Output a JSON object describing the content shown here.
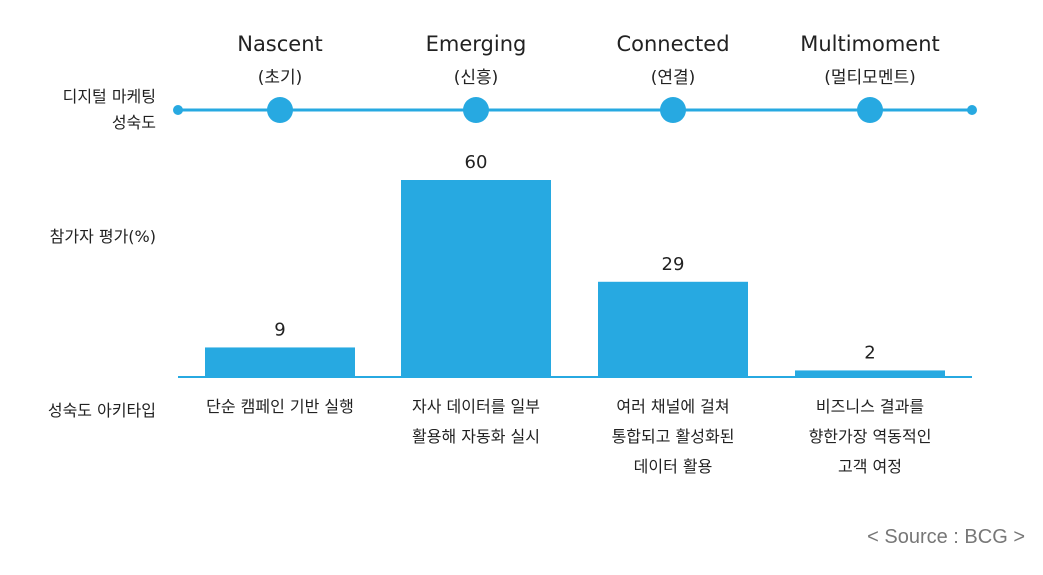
{
  "row_labels": {
    "maturity": "디지털 마케팅\n성숙도",
    "assessment": "참가자 평가(%)",
    "archetype": "성숙도 아키타입"
  },
  "stages": [
    {
      "name": "Nascent",
      "sub": "(초기)",
      "archetype": "단순 캠페인 기반 실행"
    },
    {
      "name": "Emerging",
      "sub": "(신흥)",
      "archetype": "자사 데이터를 일부\n활용해 자동화 실시"
    },
    {
      "name": "Connected",
      "sub": "(연결)",
      "archetype": "여러 채널에 걸쳐\n통합되고 활성화된\n데이터 활용"
    },
    {
      "name": "Multimoment",
      "sub": "(멀티모멘트)",
      "archetype": "비즈니스 결과를\n향한가장 역동적인\n고객 여정"
    }
  ],
  "chart_data": {
    "type": "bar",
    "categories": [
      "Nascent",
      "Emerging",
      "Connected",
      "Multimoment"
    ],
    "values": [
      9,
      60,
      29,
      2
    ],
    "title": "",
    "xlabel": "",
    "ylabel": "참가자 평가(%)",
    "ylim": [
      0,
      60
    ],
    "grid": false,
    "bar_color": "#27a9e1"
  },
  "colors": {
    "accent": "#27a9e1",
    "text": "#222222",
    "source_text": "#777777"
  },
  "source": "< Source : BCG >"
}
